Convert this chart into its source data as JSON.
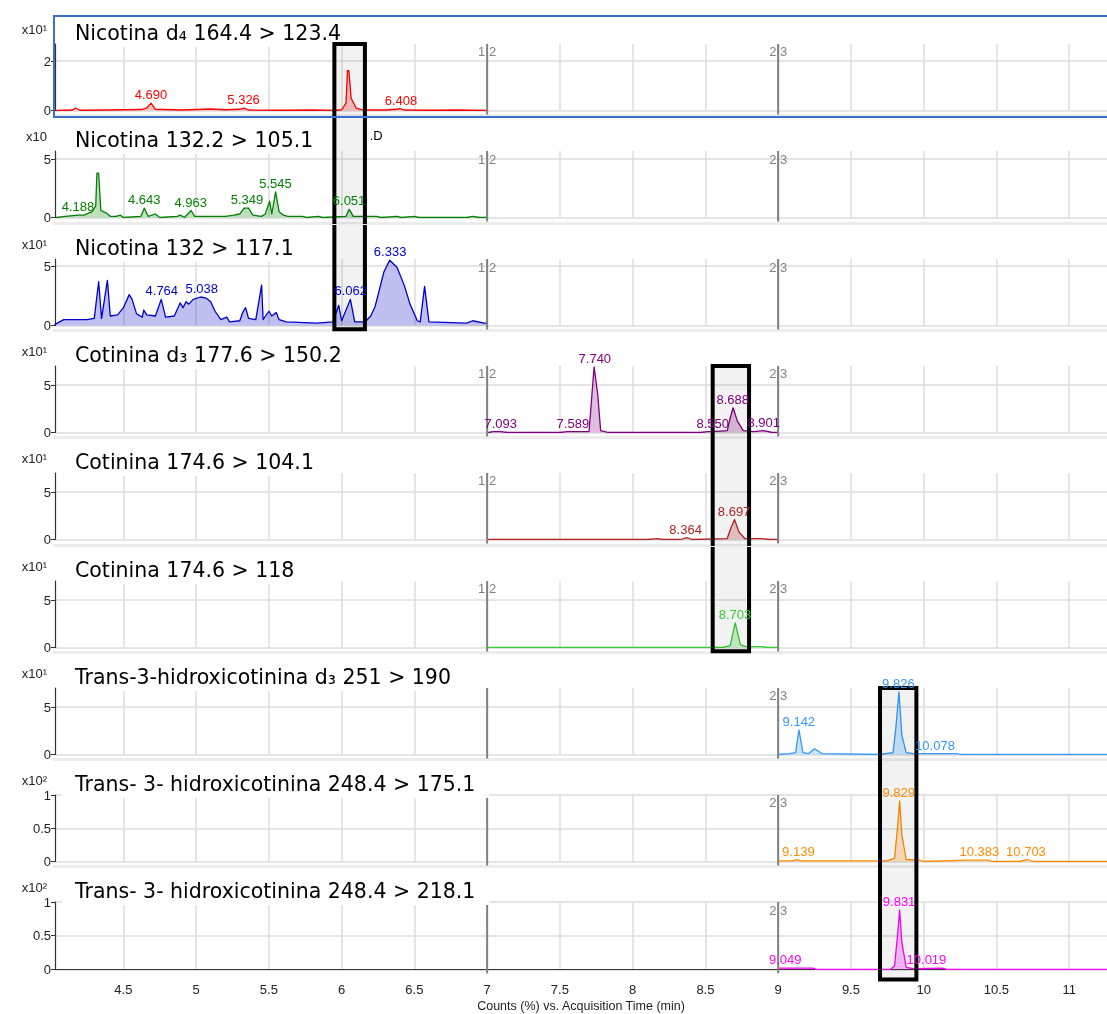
{
  "chart_data": [
    {
      "type": "area",
      "title": "Nicotina d₄ 164.4 > 123.4",
      "ylabel": "x10¹",
      "x": [
        4.04,
        4.15,
        4.17,
        4.2,
        4.4,
        4.5,
        4.62,
        4.66,
        4.69,
        4.72,
        4.9,
        5.1,
        5.2,
        5.3,
        5.33,
        5.36,
        5.6,
        5.8,
        5.95,
        6.0,
        6.03,
        6.04,
        6.05,
        6.065,
        6.1,
        6.15,
        6.3,
        6.38,
        6.4,
        6.43,
        6.6,
        6.8,
        7.0
      ],
      "series": [
        {
          "color": "#ff0000",
          "values": [
            0,
            0.02,
            0.1,
            0.01,
            0.02,
            0.03,
            0.04,
            0.1,
            0.3,
            0.05,
            0.02,
            0.06,
            0.03,
            0.05,
            0.1,
            0.02,
            0.01,
            0.02,
            0,
            0.03,
            0.3,
            1.62,
            1.62,
            0.5,
            0.1,
            0.02,
            0.02,
            0.05,
            0.08,
            0.02,
            0.01,
            0.02,
            0
          ]
        }
      ],
      "xlim": [
        4.03,
        11.26
      ],
      "ylim": [
        0,
        2.7
      ],
      "xticks": [
        4.5,
        5,
        5.5,
        6,
        6.5,
        7,
        7.5,
        8,
        8.5,
        9,
        9.5,
        10,
        10.5,
        11
      ],
      "yticks": [
        0,
        2
      ],
      "grid": true,
      "tick_labels": "y",
      "annotations": [
        {
          "text": "4.690",
          "x": 4.69,
          "y": 0.3
        },
        {
          "text": "5.326",
          "x": 5.326,
          "y": 0.1
        },
        {
          "text": "6.408",
          "x": 6.408,
          "y": 0.08
        },
        {
          "text": "1 2",
          "x": 7,
          "y": 2.4
        },
        {
          "text": "2 3",
          "x": 9,
          "y": 2.4
        }
      ],
      "ref_lines": [
        {
          "axis": "x",
          "value": 7,
          "color": "#808080"
        },
        {
          "axis": "x",
          "value": 9,
          "color": "#808080"
        }
      ],
      "bands": [
        {
          "axis": "x",
          "from": 5.95,
          "to": 6.16,
          "color": "#000000"
        }
      ]
    },
    {
      "type": "area",
      "title": "Nicotina 132.2 > 105.1",
      "ylabel": "x10",
      "x": [
        4.04,
        4.1,
        4.19,
        4.23,
        4.285,
        4.31,
        4.318,
        4.33,
        4.345,
        4.38,
        4.41,
        4.45,
        4.48,
        4.5,
        4.62,
        4.644,
        4.67,
        4.72,
        4.75,
        4.87,
        4.89,
        4.92,
        4.965,
        4.99,
        5.2,
        5.26,
        5.3,
        5.33,
        5.36,
        5.39,
        5.45,
        5.475,
        5.505,
        5.52,
        5.546,
        5.57,
        5.6,
        5.63,
        5.73,
        5.76,
        5.84,
        5.87,
        6.03,
        6.052,
        6.08,
        6.24,
        6.27,
        6.38,
        6.41,
        6.5,
        6.53,
        6.86,
        6.9,
        6.95,
        7.0
      ],
      "series": [
        {
          "color": "#008000",
          "values": [
            0,
            0.1,
            0.2,
            0.2,
            0.5,
            1.0,
            3.8,
            3.8,
            0.6,
            0.4,
            0.1,
            0.1,
            0.2,
            0,
            0.1,
            0.8,
            0.1,
            0.3,
            0,
            0.1,
            0.2,
            0,
            0.6,
            0.1,
            0.1,
            0.2,
            0.3,
            0.8,
            0.8,
            0.2,
            0.1,
            0.3,
            1.4,
            0.3,
            2.2,
            0.5,
            0.2,
            0.1,
            0.1,
            0,
            0.1,
            0,
            0.1,
            0.7,
            0.1,
            0.1,
            0,
            0.1,
            0,
            0.1,
            0,
            0,
            0.1,
            0,
            0
          ]
        }
      ],
      "xlim": [
        4.03,
        11.26
      ],
      "ylim": [
        0,
        5.7
      ],
      "xticks": [
        4.5,
        5,
        5.5,
        6,
        6.5,
        7,
        7.5,
        8,
        8.5,
        9,
        9.5,
        10,
        10.5,
        11
      ],
      "yticks": [
        0,
        5
      ],
      "grid": true,
      "tick_labels": "y",
      "annotations": [
        {
          "text": "4.188",
          "x": 4.188,
          "y": 0.2
        },
        {
          "text": "4.643",
          "x": 4.643,
          "y": 0.8
        },
        {
          "text": "4.963",
          "x": 4.963,
          "y": 0.6
        },
        {
          "text": "5.349",
          "x": 5.349,
          "y": 0.8
        },
        {
          "text": "5.545",
          "x": 5.545,
          "y": 2.2
        },
        {
          "text": "6.051",
          "x": 6.051,
          "y": 0.7
        },
        ".D",
        {
          "text": "1 2",
          "x": 7,
          "y": 5.0
        },
        {
          "text": "2 3",
          "x": 9,
          "y": 5.0
        }
      ],
      "ref_lines": [
        {
          "axis": "x",
          "value": 7,
          "color": "#808080"
        },
        {
          "axis": "x",
          "value": 9,
          "color": "#808080"
        }
      ],
      "bands": [
        {
          "axis": "x",
          "from": 5.95,
          "to": 6.16,
          "color": "#000000"
        }
      ]
    },
    {
      "type": "area",
      "title": "Nicotina 132 > 117.1",
      "ylabel": "x10¹",
      "x": [
        4.03,
        4.09,
        4.25,
        4.3,
        4.33,
        4.35,
        4.39,
        4.41,
        4.46,
        4.5,
        4.54,
        4.56,
        4.59,
        4.63,
        4.64,
        4.66,
        4.72,
        4.76,
        4.79,
        4.85,
        4.89,
        4.91,
        4.93,
        4.95,
        4.98,
        5.03,
        5.07,
        5.1,
        5.13,
        5.17,
        5.21,
        5.23,
        5.3,
        5.32,
        5.34,
        5.36,
        5.41,
        5.45,
        5.46,
        5.5,
        5.52,
        5.55,
        5.57,
        5.62,
        5.83,
        5.94,
        5.98,
        6.0,
        6.06,
        6.09,
        6.16,
        6.2,
        6.23,
        6.29,
        6.33,
        6.38,
        6.43,
        6.47,
        6.52,
        6.54,
        6.57,
        6.6,
        6.86,
        6.9,
        6.98,
        7.0
      ],
      "series": [
        {
          "color": "#0000cc",
          "values": [
            0.1,
            0.5,
            0.5,
            0.6,
            3.7,
            0.6,
            3.8,
            0.8,
            0.9,
            1.5,
            2.6,
            2.2,
            1.0,
            0.7,
            1.3,
            0.9,
            0.8,
            2.2,
            0.7,
            0.8,
            1.9,
            1.5,
            2.0,
            1.8,
            2.2,
            2.4,
            2.3,
            2.0,
            1.2,
            0.5,
            0.7,
            0.3,
            0.4,
            1.1,
            1.5,
            0.6,
            0.5,
            3.4,
            0.5,
            1.2,
            0.8,
            1.1,
            0.5,
            0.3,
            0.2,
            0.3,
            1.7,
            0.4,
            2.2,
            0.3,
            0.3,
            0.8,
            1.6,
            4.5,
            5.5,
            4.9,
            3.4,
            1.8,
            0.4,
            0.3,
            3.3,
            0.3,
            0.2,
            0.4,
            0.2,
            0.2
          ]
        }
      ],
      "xlim": [
        4.03,
        11.26
      ],
      "ylim": [
        0,
        5.6
      ],
      "xticks": [
        4.5,
        5,
        5.5,
        6,
        6.5,
        7,
        7.5,
        8,
        8.5,
        9,
        9.5,
        10,
        10.5,
        11
      ],
      "yticks": [
        0,
        5
      ],
      "grid": true,
      "tick_labels": "y",
      "annotations": [
        {
          "text": "4.764",
          "x": 4.764,
          "y": 2.2
        },
        {
          "text": "5.038",
          "x": 5.038,
          "y": 2.4
        },
        {
          "text": "6.062",
          "x": 6.062,
          "y": 2.2
        },
        {
          "text": "6.333",
          "x": 6.333,
          "y": 5.5
        },
        {
          "text": "1 2",
          "x": 7,
          "y": 4.9
        },
        {
          "text": "2 3",
          "x": 9,
          "y": 4.9
        }
      ],
      "ref_lines": [
        {
          "axis": "x",
          "value": 7,
          "color": "#808080"
        },
        {
          "axis": "x",
          "value": 9,
          "color": "#808080"
        }
      ],
      "bands": [
        {
          "axis": "x",
          "from": 5.95,
          "to": 6.16,
          "color": "#000000"
        }
      ]
    },
    {
      "type": "area",
      "title": "Cotinina d₃ 177.6 > 150.2",
      "ylabel": "x10¹",
      "x": [
        7.01,
        7.04,
        7.09,
        7.14,
        7.5,
        7.55,
        7.59,
        7.7,
        7.71,
        7.735,
        7.76,
        7.78,
        7.81,
        7.83,
        8.46,
        8.52,
        8.55,
        8.65,
        8.67,
        8.69,
        8.72,
        8.76,
        8.83,
        8.9,
        8.96,
        9.0
      ],
      "series": [
        {
          "color": "#800080",
          "values": [
            0,
            0.1,
            0.1,
            0,
            0,
            0.1,
            0.1,
            0.1,
            2.0,
            6.9,
            4.0,
            0.2,
            0.1,
            0,
            0,
            0.1,
            0.1,
            0.2,
            1.5,
            2.6,
            1.2,
            0.2,
            0.1,
            0.2,
            0,
            0
          ]
        }
      ],
      "xlim": [
        4.03,
        11.26
      ],
      "ylim": [
        0,
        7
      ],
      "xticks": [
        4.5,
        5,
        5.5,
        6,
        6.5,
        7,
        7.5,
        8,
        8.5,
        9,
        9.5,
        10,
        10.5,
        11
      ],
      "yticks": [
        0,
        5
      ],
      "grid": true,
      "tick_labels": "y",
      "annotations": [
        {
          "text": "7.093",
          "x": 7.093,
          "y": 0.1
        },
        {
          "text": "7.589",
          "x": 7.589,
          "y": 0.1
        },
        {
          "text": "7.740",
          "x": 7.74,
          "y": 6.9
        },
        {
          "text": "8.550",
          "x": 8.55,
          "y": 0.1
        },
        {
          "text": "8.688",
          "x": 8.688,
          "y": 2.6
        },
        {
          "text": "8.901",
          "x": 8.901,
          "y": 0.2
        },
        {
          "text": "1 2",
          "x": 7,
          "y": 6.2
        },
        {
          "text": "2 3",
          "x": 9,
          "y": 6.2
        }
      ],
      "ref_lines": [
        {
          "axis": "x",
          "value": 7,
          "color": "#808080"
        },
        {
          "axis": "x",
          "value": 9,
          "color": "#808080"
        }
      ],
      "bands": [
        {
          "axis": "x",
          "from": 8.55,
          "to": 8.8,
          "color": "#000000"
        }
      ]
    },
    {
      "type": "area",
      "title": "Cotinina 174.6 > 104.1",
      "ylabel": "x10¹",
      "x": [
        7.01,
        8.1,
        8.17,
        8.21,
        8.33,
        8.37,
        8.41,
        8.65,
        8.67,
        8.7,
        8.73,
        8.77,
        8.88,
        8.94,
        9.0
      ],
      "series": [
        {
          "color": "#b22222",
          "values": [
            0,
            0,
            0.1,
            0,
            0,
            0.2,
            0,
            0.1,
            1.0,
            2.1,
            0.8,
            0.1,
            0.1,
            0,
            0
          ]
        }
      ],
      "xlim": [
        4.03,
        11.26
      ],
      "ylim": [
        0,
        7
      ],
      "xticks": [
        4.5,
        5,
        5.5,
        6,
        6.5,
        7,
        7.5,
        8,
        8.5,
        9,
        9.5,
        10,
        10.5,
        11
      ],
      "yticks": [
        0,
        5
      ],
      "grid": true,
      "tick_labels": "y",
      "annotations": [
        {
          "text": "8.364",
          "x": 8.364,
          "y": 0.2
        },
        {
          "text": "8.697",
          "x": 8.697,
          "y": 2.1
        },
        {
          "text": "1 2",
          "x": 7,
          "y": 6.2
        },
        {
          "text": "2 3",
          "x": 9,
          "y": 6.2
        }
      ],
      "ref_lines": [
        {
          "axis": "x",
          "value": 7,
          "color": "#808080"
        },
        {
          "axis": "x",
          "value": 9,
          "color": "#808080"
        }
      ],
      "bands": [
        {
          "axis": "x",
          "from": 8.55,
          "to": 8.8,
          "color": "#000000"
        }
      ]
    },
    {
      "type": "area",
      "title": "Cotinina 174.6 > 118",
      "ylabel": "x10¹",
      "x": [
        7.01,
        8.62,
        8.67,
        8.705,
        8.74,
        8.78,
        8.88,
        8.93,
        9.0
      ],
      "series": [
        {
          "color": "#33cc33",
          "values": [
            0,
            0,
            0.2,
            2.6,
            0.3,
            0.1,
            0.1,
            0,
            0
          ]
        }
      ],
      "xlim": [
        4.03,
        11.26
      ],
      "ylim": [
        0,
        7
      ],
      "xticks": [
        4.5,
        5,
        5.5,
        6,
        6.5,
        7,
        7.5,
        8,
        8.5,
        9,
        9.5,
        10,
        10.5,
        11
      ],
      "yticks": [
        0,
        5
      ],
      "grid": true,
      "tick_labels": "y",
      "annotations": [
        {
          "text": "8.703",
          "x": 8.703,
          "y": 2.6
        },
        {
          "text": "1 2",
          "x": 7,
          "y": 6.2
        },
        {
          "text": "2 3",
          "x": 9,
          "y": 6.2
        }
      ],
      "ref_lines": [
        {
          "axis": "x",
          "value": 7,
          "color": "#808080"
        },
        {
          "axis": "x",
          "value": 9,
          "color": "#808080"
        }
      ],
      "bands": [
        {
          "axis": "x",
          "from": 8.55,
          "to": 8.8,
          "color": "#000000"
        }
      ]
    },
    {
      "type": "area",
      "title": "Trans-3-hidroxicotinina d₃ 251 > 190",
      "ylabel": "x10¹",
      "x": [
        9.0,
        9.08,
        9.12,
        9.143,
        9.17,
        9.21,
        9.25,
        9.3,
        9.7,
        9.79,
        9.81,
        9.83,
        9.85,
        9.88,
        9.93,
        9.97,
        10.09,
        10.23,
        10.25,
        11.26
      ],
      "series": [
        {
          "color": "#3399ff",
          "values": [
            0,
            0.1,
            0.2,
            2.6,
            0.2,
            0.1,
            0.6,
            0.1,
            0,
            0.2,
            3.0,
            6.6,
            2.0,
            0.2,
            0.1,
            0.1,
            0.1,
            0.1,
            0,
            0
          ]
        }
      ],
      "xlim": [
        4.03,
        11.26
      ],
      "ylim": [
        0,
        7
      ],
      "xticks": [
        4.5,
        5,
        5.5,
        6,
        6.5,
        7,
        7.5,
        8,
        8.5,
        9,
        9.5,
        10,
        10.5,
        11
      ],
      "yticks": [
        0,
        5
      ],
      "grid": true,
      "tick_labels": "y",
      "annotations": [
        {
          "text": "9.142",
          "x": 9.142,
          "y": 2.6
        },
        {
          "text": "9.826",
          "x": 9.826,
          "y": 6.6
        },
        {
          "text": "10.078",
          "x": 10.078,
          "y": 0.1
        },
        {
          "text": "2 3",
          "x": 9,
          "y": 6.2
        }
      ],
      "ref_lines": [
        {
          "axis": "x",
          "value": 7,
          "color": "#808080"
        },
        {
          "axis": "x",
          "value": 9,
          "color": "#808080"
        }
      ],
      "bands": [
        {
          "axis": "x",
          "from": 9.7,
          "to": 9.95,
          "color": "#000000"
        }
      ]
    },
    {
      "type": "area",
      "title": "Trans- 3- hidroxicotinina 248.4 > 175.1",
      "ylabel": "x10²",
      "x": [
        9.01,
        9.1,
        9.13,
        9.16,
        9.75,
        9.8,
        9.82,
        9.835,
        9.85,
        9.88,
        9.97,
        10.0,
        10.3,
        10.44,
        10.47,
        10.66,
        10.71,
        10.75,
        11.26
      ],
      "series": [
        {
          "color": "#ff8c00",
          "values": [
            0.01,
            0.01,
            0.03,
            0.01,
            0.01,
            0.05,
            0.5,
            0.91,
            0.4,
            0.03,
            0.02,
            0,
            0.02,
            0.02,
            0,
            0,
            0.03,
            0,
            0
          ]
        }
      ],
      "xlim": [
        4.03,
        11.26
      ],
      "ylim": [
        0,
        1
      ],
      "xticks": [
        4.5,
        5,
        5.5,
        6,
        6.5,
        7,
        7.5,
        8,
        8.5,
        9,
        9.5,
        10,
        10.5,
        11
      ],
      "yticks": [
        0,
        0.5,
        1
      ],
      "grid": true,
      "tick_labels": "y",
      "annotations": [
        {
          "text": "9.139",
          "x": 9.139,
          "y": 0.03
        },
        {
          "text": "9.829",
          "x": 9.829,
          "y": 0.91
        },
        {
          "text": "10.383",
          "x": 10.383,
          "y": 0.02
        },
        {
          "text": "10.703",
          "x": 10.703,
          "y": 0.03
        },
        {
          "text": "2 3",
          "x": 9,
          "y": 0.88
        }
      ],
      "ref_lines": [
        {
          "axis": "x",
          "value": 7,
          "color": "#808080"
        },
        {
          "axis": "x",
          "value": 9,
          "color": "#808080"
        }
      ],
      "bands": [
        {
          "axis": "x",
          "from": 9.7,
          "to": 9.95,
          "color": "#000000"
        }
      ]
    },
    {
      "type": "area",
      "title": "Trans- 3- hidroxicotinina 248.4 > 218.1",
      "ylabel": "x10²",
      "xlabel": "Counts (%) vs. Acquisition Time (min)",
      "x": [
        9.01,
        9.24,
        9.26,
        9.77,
        9.8,
        9.82,
        9.835,
        9.85,
        9.88,
        9.93,
        10.13,
        10.16,
        11.26
      ],
      "series": [
        {
          "color": "#ff00ff",
          "values": [
            0.02,
            0.02,
            0,
            0,
            0.05,
            0.5,
            0.88,
            0.4,
            0.03,
            0.01,
            0.02,
            0,
            0
          ]
        }
      ],
      "xlim": [
        4.03,
        11.26
      ],
      "ylim": [
        0,
        1
      ],
      "xticks": [
        4.5,
        5,
        5.5,
        6,
        6.5,
        7,
        7.5,
        8,
        8.5,
        9,
        9.5,
        10,
        10.5,
        11
      ],
      "yticks": [
        0,
        0.5,
        1
      ],
      "grid": true,
      "annotations": [
        {
          "text": "9.049",
          "x": 9.049,
          "y": 0.02
        },
        {
          "text": "9.831",
          "x": 9.831,
          "y": 0.88
        },
        {
          "text": "10.019",
          "x": 10.019,
          "y": 0.02
        },
        {
          "text": "2 3",
          "x": 9,
          "y": 0.88
        }
      ],
      "ref_lines": [
        {
          "axis": "x",
          "value": 7,
          "color": "#808080"
        },
        {
          "axis": "x",
          "value": 9,
          "color": "#808080"
        }
      ],
      "bands": [
        {
          "axis": "x",
          "from": 9.7,
          "to": 9.95,
          "color": "#000000"
        }
      ]
    }
  ]
}
